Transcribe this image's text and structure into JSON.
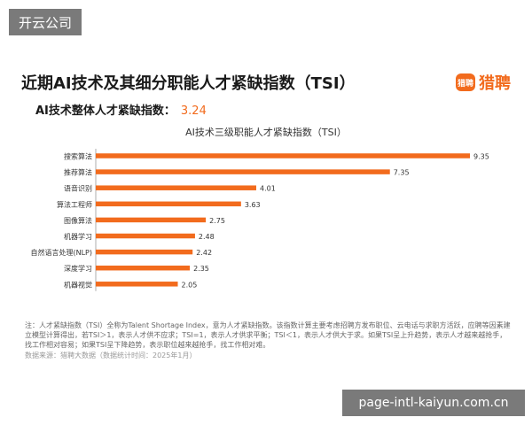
{
  "watermark_top": "开云公司",
  "watermark_bottom": "page-intl-kaiyun.com.cn",
  "title": "近期AI技术及其细分职能人才紧缺指数（TSI）",
  "logo": {
    "mark": "猎聘",
    "text": "猎聘"
  },
  "overall": {
    "label": "AI技术整体人才紧缺指数：",
    "value": "3.24"
  },
  "footnote": "注：人才紧缺指数（TSI）全称为Talent Shortage Index，意为人才紧缺指数。该指数计算主要考虑招聘方发布职位、云电话与求职方活跃，应聘等因素建立模型计算得出，若TSI＞1，表示人才供不应求；TSI=1，表示人才供求平衡；TSI＜1，表示人才供大于求。如果TSI呈上升趋势，表示人才越来越抢手，找工作相对容易；如果TSI呈下降趋势，表示职位越来越抢手，找工作相对难。",
  "source": "数据来源：猎聘大数据（数据统计时间：2025年1月）",
  "colors": {
    "accent": "#f26b1d",
    "bar": "#f26b1d"
  },
  "chart_data": {
    "type": "bar",
    "orientation": "horizontal",
    "title": "AI技术三级职能人才紧缺指数（TSI）",
    "categories": [
      "搜索算法",
      "推荐算法",
      "语音识别",
      "算法工程师",
      "图像算法",
      "机器学习",
      "自然语言处理(NLP)",
      "深度学习",
      "机器视觉"
    ],
    "values": [
      9.35,
      7.35,
      4.01,
      3.63,
      2.75,
      2.48,
      2.42,
      2.35,
      2.05
    ],
    "value_labels": [
      "9.35",
      "7.35",
      "4.01",
      "3.63",
      "2.75",
      "2.48",
      "2.42",
      "2.35",
      "2.05"
    ],
    "xlim": [
      0,
      9.35
    ],
    "grid": false,
    "xlabel": "",
    "ylabel": ""
  }
}
